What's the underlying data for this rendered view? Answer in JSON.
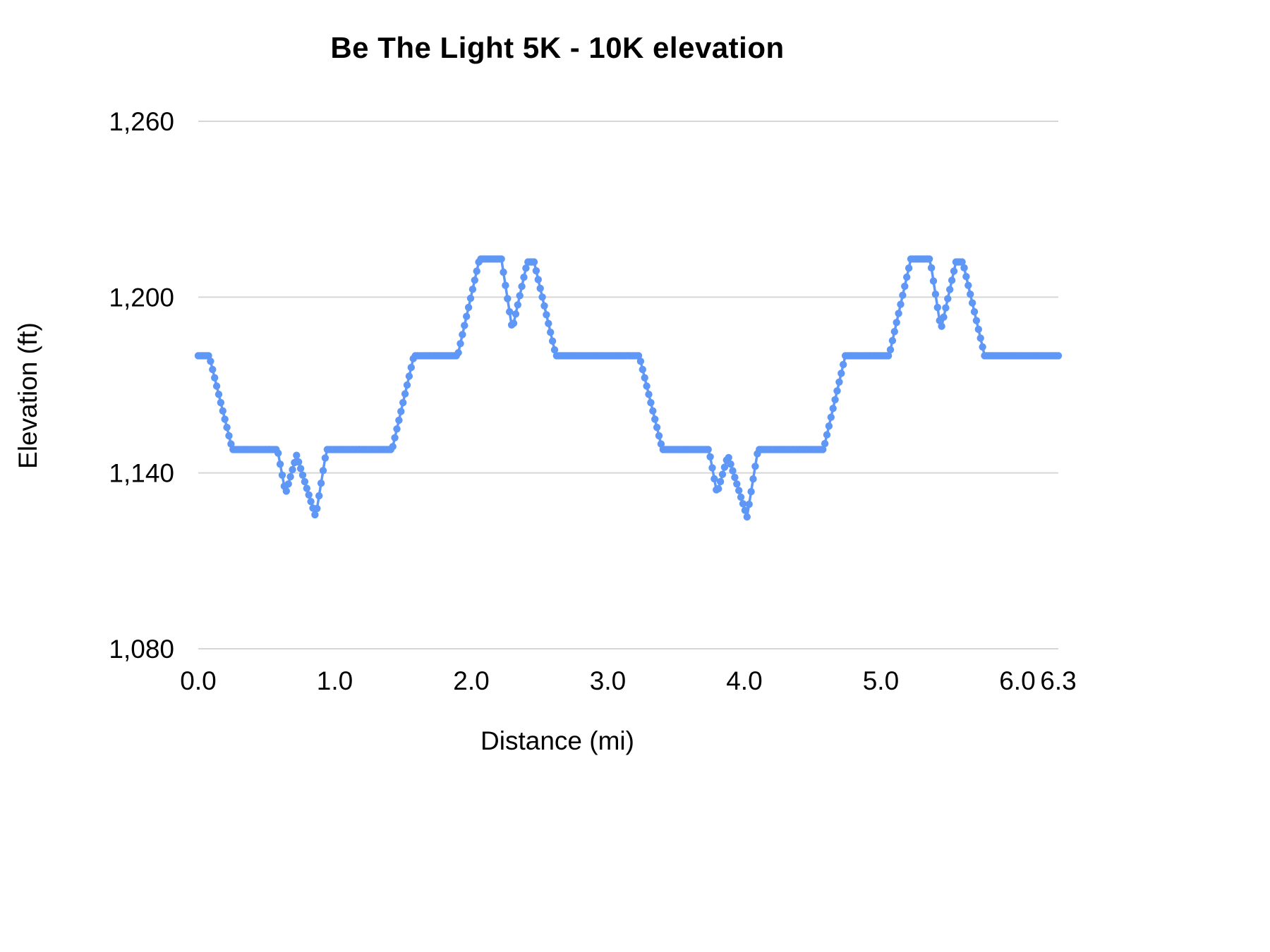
{
  "title": "Be The Light 5K - 10K elevation",
  "colors": {
    "background": "#ffffff",
    "grid": "#d6d6d6",
    "text": "#000000",
    "series": "#5e97f6"
  },
  "chart_data": {
    "type": "line",
    "title": "Be The Light 5K - 10K elevation",
    "xlabel": "Distance (mi)",
    "ylabel": "Elevation (ft)",
    "xlim": [
      0,
      6.3
    ],
    "ylim": [
      1080,
      1260
    ],
    "grid": "horizontal",
    "legend": "none",
    "series_name": "elevation",
    "series_color": "#5e97f6",
    "marker_style": "dense-dots",
    "marker_step_mi": 0.015,
    "x_ticks": [
      {
        "v": 0.0,
        "label": "0.0"
      },
      {
        "v": 1.0,
        "label": "1.0"
      },
      {
        "v": 2.0,
        "label": "2.0"
      },
      {
        "v": 3.0,
        "label": "3.0"
      },
      {
        "v": 4.0,
        "label": "4.0"
      },
      {
        "v": 5.0,
        "label": "5.0"
      },
      {
        "v": 6.0,
        "label": "6.0"
      },
      {
        "v": 6.3,
        "label": "6.3"
      }
    ],
    "y_ticks": [
      {
        "v": 1080,
        "label": "1,080"
      },
      {
        "v": 1140,
        "label": "1,140"
      },
      {
        "v": 1200,
        "label": "1,200"
      },
      {
        "v": 1260,
        "label": "1,260"
      }
    ],
    "profile_keypoints": [
      [
        0.0,
        1180
      ],
      [
        0.08,
        1180
      ],
      [
        0.25,
        1148
      ],
      [
        0.58,
        1148
      ],
      [
        0.64,
        1133
      ],
      [
        0.72,
        1146
      ],
      [
        0.86,
        1125
      ],
      [
        0.94,
        1148
      ],
      [
        1.42,
        1148
      ],
      [
        1.58,
        1180
      ],
      [
        1.9,
        1180
      ],
      [
        2.06,
        1213
      ],
      [
        2.22,
        1213
      ],
      [
        2.3,
        1189
      ],
      [
        2.41,
        1212
      ],
      [
        2.46,
        1212
      ],
      [
        2.62,
        1180
      ],
      [
        3.23,
        1180
      ],
      [
        3.4,
        1148
      ],
      [
        3.74,
        1148
      ],
      [
        3.8,
        1133
      ],
      [
        3.88,
        1146
      ],
      [
        4.02,
        1125
      ],
      [
        4.1,
        1148
      ],
      [
        4.58,
        1148
      ],
      [
        4.74,
        1180
      ],
      [
        5.06,
        1180
      ],
      [
        5.22,
        1213
      ],
      [
        5.36,
        1213
      ],
      [
        5.44,
        1189
      ],
      [
        5.55,
        1212
      ],
      [
        5.6,
        1212
      ],
      [
        5.76,
        1180
      ],
      [
        6.3,
        1180
      ]
    ]
  }
}
